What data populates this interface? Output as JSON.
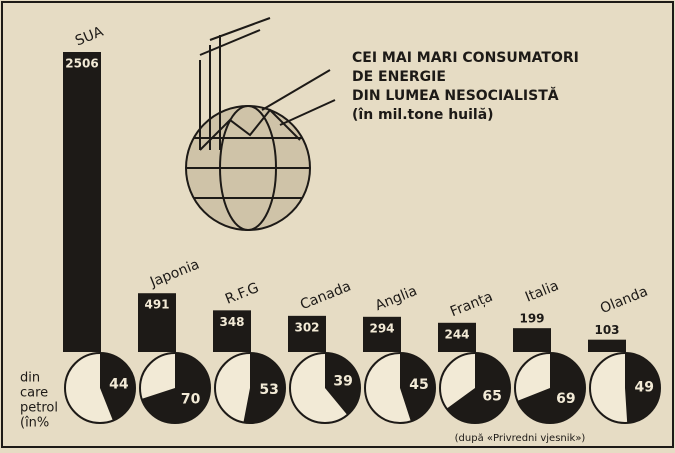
{
  "chart_data": {
    "type": "bar",
    "title_lines": [
      "CEI MAI MARI CONSUMATORI",
      "DE ENERGIE",
      "DIN LUMEA NESOCIALISTĂ",
      "(în mil.tone huilă)"
    ],
    "categories": [
      "SUA",
      "Japonia",
      "R.F.G",
      "Canada",
      "Anglia",
      "Franța",
      "Italia",
      "Olanda"
    ],
    "values": [
      2506,
      491,
      348,
      302,
      294,
      244,
      199,
      103
    ],
    "petrol_label_lines": [
      "din",
      "care",
      "petrol",
      "(în%"
    ],
    "petrol_percent": [
      44,
      70,
      53,
      39,
      45,
      65,
      69,
      49
    ],
    "color": "#1d1a17",
    "source": "(după «Privredni vjesnik»)"
  }
}
